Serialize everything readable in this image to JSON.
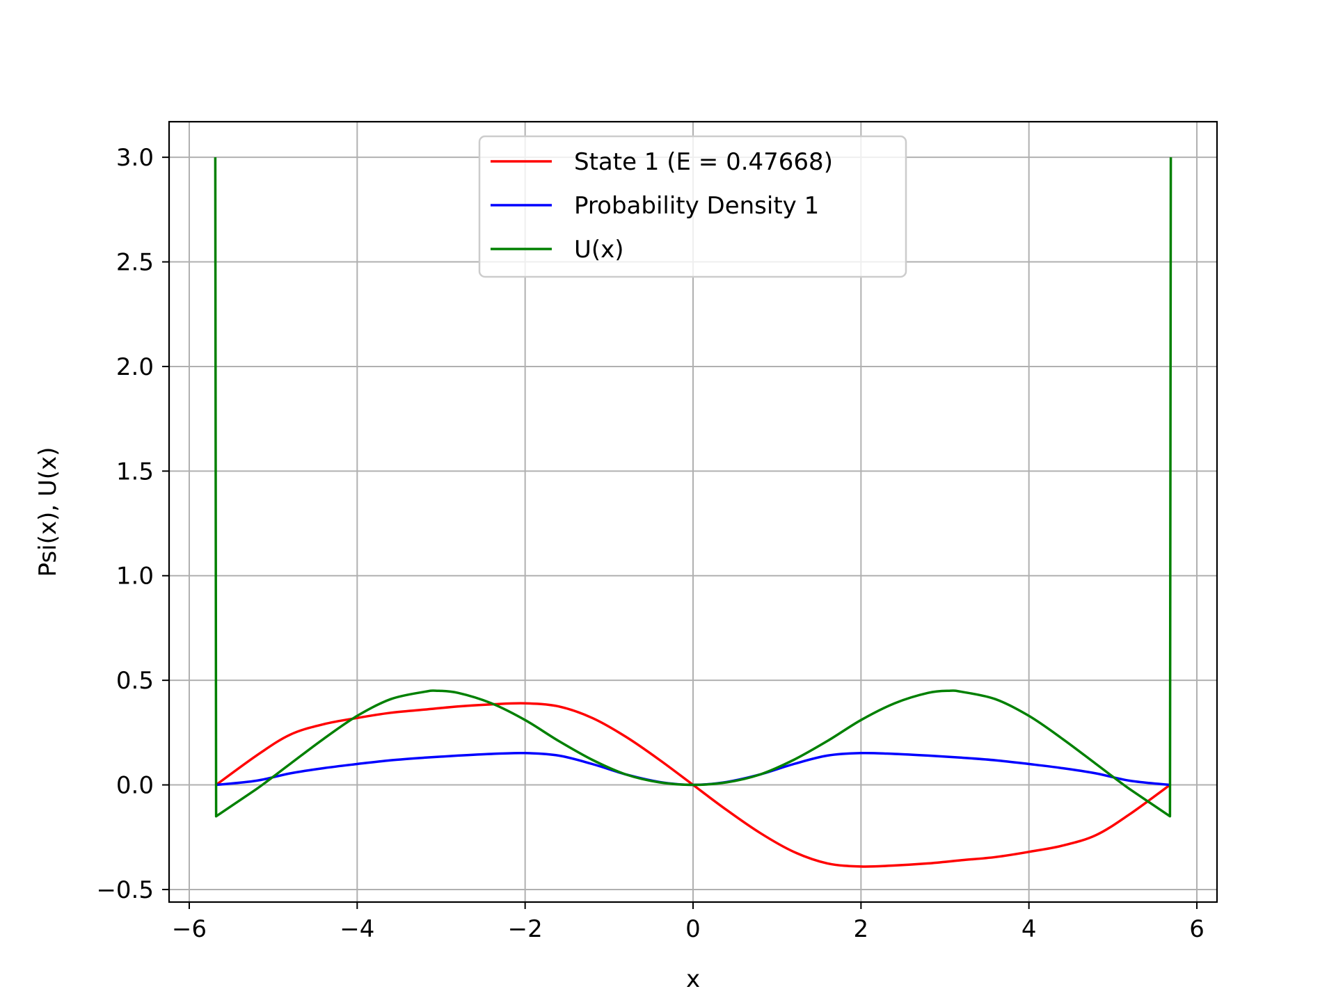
{
  "chart_data": {
    "type": "line",
    "title": "",
    "xlabel": "x",
    "ylabel": "Psi(x), U(x)",
    "xlim": [
      -6.24,
      6.24
    ],
    "ylim": [
      -0.56,
      3.17
    ],
    "grid": true,
    "legend_position": "upper center",
    "xticks": [
      -6,
      -4,
      -2,
      0,
      2,
      4,
      6
    ],
    "xtick_labels": [
      "−6",
      "−4",
      "−2",
      "0",
      "2",
      "4",
      "6"
    ],
    "yticks": [
      -0.5,
      0.0,
      0.5,
      1.0,
      1.5,
      2.0,
      2.5,
      3.0
    ],
    "ytick_labels": [
      "−0.5",
      "0.0",
      "0.5",
      "1.0",
      "1.5",
      "2.0",
      "2.5",
      "3.0"
    ],
    "series": [
      {
        "name": "State 1 (E = 0.47668)",
        "color": "#ff0000",
        "x": [
          -5.68,
          -5.2,
          -4.8,
          -4.4,
          -4.0,
          -3.6,
          -3.2,
          -2.8,
          -2.4,
          -2.0,
          -1.6,
          -1.2,
          -0.8,
          -0.4,
          0.0,
          0.4,
          0.8,
          1.2,
          1.6,
          2.0,
          2.4,
          2.8,
          3.2,
          3.6,
          4.0,
          4.4,
          4.8,
          5.2,
          5.68
        ],
        "y": [
          0.0,
          0.14,
          0.24,
          0.29,
          0.32,
          0.345,
          0.36,
          0.375,
          0.385,
          0.39,
          0.375,
          0.32,
          0.23,
          0.12,
          0.0,
          -0.12,
          -0.23,
          -0.32,
          -0.375,
          -0.39,
          -0.385,
          -0.375,
          -0.36,
          -0.345,
          -0.32,
          -0.29,
          -0.24,
          -0.14,
          0.0
        ]
      },
      {
        "name": "Probability Density 1",
        "color": "#0000ff",
        "x": [
          -5.68,
          -5.2,
          -4.8,
          -4.4,
          -4.0,
          -3.6,
          -3.2,
          -2.8,
          -2.4,
          -2.0,
          -1.6,
          -1.2,
          -0.8,
          -0.4,
          0.0,
          0.4,
          0.8,
          1.2,
          1.6,
          2.0,
          2.4,
          2.8,
          3.2,
          3.6,
          4.0,
          4.4,
          4.8,
          5.2,
          5.68
        ],
        "y": [
          0.0,
          0.02,
          0.055,
          0.08,
          0.1,
          0.118,
          0.13,
          0.14,
          0.148,
          0.152,
          0.14,
          0.1,
          0.05,
          0.014,
          0.0,
          0.014,
          0.05,
          0.1,
          0.14,
          0.152,
          0.148,
          0.14,
          0.13,
          0.118,
          0.1,
          0.08,
          0.055,
          0.02,
          0.0
        ]
      },
      {
        "name": "U(x)",
        "color": "#008000",
        "x": [
          -5.69,
          -5.68,
          -5.2,
          -4.8,
          -4.4,
          -4.0,
          -3.6,
          -3.2,
          -3.05,
          -2.8,
          -2.4,
          -2.0,
          -1.6,
          -1.2,
          -0.8,
          -0.4,
          0.0,
          0.4,
          0.8,
          1.2,
          1.6,
          2.0,
          2.4,
          2.8,
          3.05,
          3.2,
          3.6,
          4.0,
          4.4,
          4.8,
          5.2,
          5.68,
          5.69
        ],
        "y": [
          3.0,
          -0.15,
          -0.02,
          0.1,
          0.22,
          0.33,
          0.41,
          0.445,
          0.45,
          0.44,
          0.39,
          0.31,
          0.21,
          0.12,
          0.05,
          0.012,
          0.0,
          0.012,
          0.05,
          0.12,
          0.21,
          0.31,
          0.39,
          0.44,
          0.45,
          0.445,
          0.41,
          0.33,
          0.22,
          0.1,
          -0.02,
          -0.15,
          3.0
        ]
      }
    ]
  }
}
